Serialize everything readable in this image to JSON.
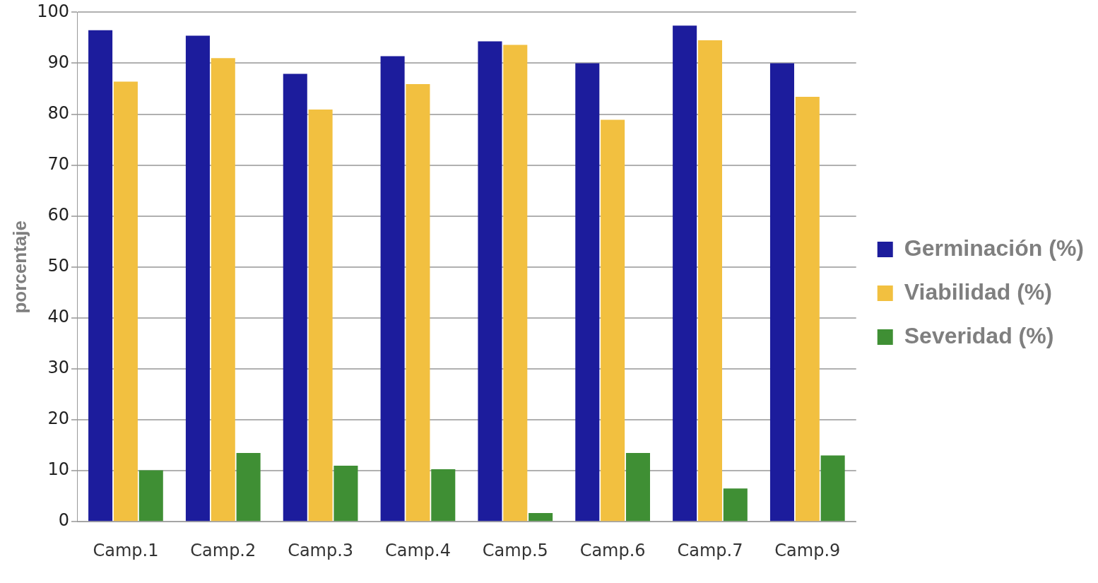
{
  "chart_data": {
    "type": "bar",
    "ylabel": "porcentaje",
    "categories": [
      "Camp.1",
      "Camp.2",
      "Camp.3",
      "Camp.4",
      "Camp.5",
      "Camp.6",
      "Camp.7",
      "Camp.9"
    ],
    "series": [
      {
        "name": "Germinación (%)",
        "color": "#1c1c9c",
        "values": [
          96.5,
          95.4,
          87.9,
          91.4,
          94.3,
          90,
          97.4,
          90
        ]
      },
      {
        "name": "Viabilidad (%)",
        "color": "#f2c040",
        "values": [
          86.4,
          91,
          80.9,
          85.9,
          93.6,
          78.9,
          94.5,
          83.4
        ]
      },
      {
        "name": "Severidad (%)",
        "color": "#3f8f34",
        "values": [
          10.1,
          13.5,
          11,
          10.3,
          1.7,
          13.5,
          6.5,
          13
        ]
      }
    ],
    "ylim": [
      0,
      100
    ],
    "yticks": [
      0,
      10,
      20,
      30,
      40,
      50,
      60,
      70,
      80,
      90,
      100
    ],
    "grid": "y",
    "legend": "right"
  }
}
